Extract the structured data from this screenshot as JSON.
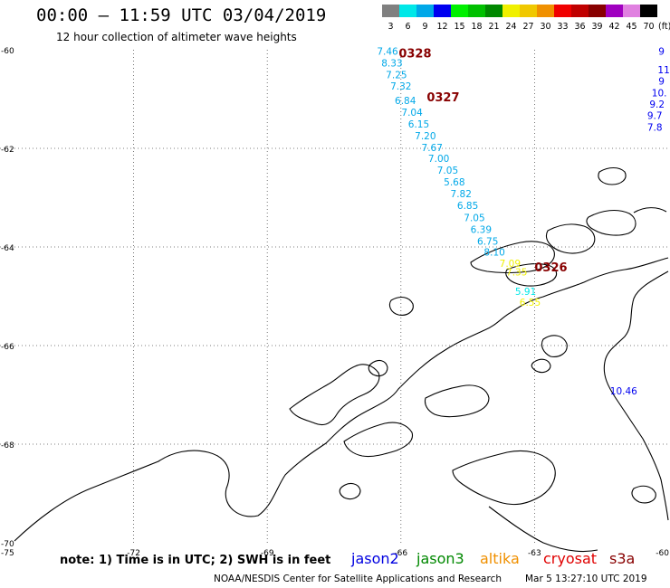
{
  "header": {
    "title": "00:00 – 11:59 UTC 03/04/2019",
    "subtitle": "12 hour collection of altimeter wave heights"
  },
  "legend": {
    "unit": "(ft)",
    "bins": [
      {
        "label": "3",
        "color": "#808080"
      },
      {
        "label": "6",
        "color": "#00e8e8"
      },
      {
        "label": "9",
        "color": "#00a8e8"
      },
      {
        "label": "12",
        "color": "#0000f0"
      },
      {
        "label": "15",
        "color": "#00f000"
      },
      {
        "label": "18",
        "color": "#00c000"
      },
      {
        "label": "21",
        "color": "#008800"
      },
      {
        "label": "24",
        "color": "#f0f000"
      },
      {
        "label": "27",
        "color": "#f0c800"
      },
      {
        "label": "30",
        "color": "#f09000"
      },
      {
        "label": "33",
        "color": "#f00000"
      },
      {
        "label": "36",
        "color": "#c00000"
      },
      {
        "label": "39",
        "color": "#880000"
      },
      {
        "label": "42",
        "color": "#a000c0"
      },
      {
        "label": "45",
        "color": "#e080e0"
      },
      {
        "label": "70",
        "color": "#000000"
      }
    ]
  },
  "axes": {
    "lat_labels": [
      {
        "value": "-60",
        "lat": -60
      },
      {
        "value": "-62",
        "lat": -62
      },
      {
        "value": "-64",
        "lat": -64
      },
      {
        "value": "-66",
        "lat": -66
      },
      {
        "value": "-68",
        "lat": -68
      },
      {
        "value": "-70",
        "lat": -70
      }
    ],
    "lon_labels": [
      {
        "value": "-75",
        "lon": -75
      },
      {
        "value": "-72",
        "lon": -72
      },
      {
        "value": "-69",
        "lon": -69
      },
      {
        "value": "-66",
        "lon": -66
      },
      {
        "value": "-63",
        "lon": -63
      },
      {
        "value": "-60",
        "lon": -60
      }
    ]
  },
  "chart_data": {
    "type": "scatter",
    "title": "00:00 – 11:59 UTC 03/04/2019",
    "subtitle": "12 hour collection of altimeter wave heights",
    "xlim": [
      -75,
      -60
    ],
    "ylim": [
      -70,
      -60
    ],
    "grid": true,
    "series": [
      {
        "name": "track 0328",
        "color": "#00a8e8",
        "points": [
          {
            "lon": -66.3,
            "lat": -60.03,
            "label": "7.46"
          },
          {
            "lon": -66.2,
            "lat": -60.27,
            "label": "8.33"
          },
          {
            "lon": -66.1,
            "lat": -60.5,
            "label": "7.25"
          },
          {
            "lon": -66.0,
            "lat": -60.73,
            "label": "7.32"
          },
          {
            "lon": -65.9,
            "lat": -61.03,
            "label": "6.84"
          },
          {
            "lon": -65.75,
            "lat": -61.27,
            "label": "7.04"
          },
          {
            "lon": -65.6,
            "lat": -61.5,
            "label": "6.15"
          },
          {
            "lon": -65.45,
            "lat": -61.74,
            "label": "7.20"
          },
          {
            "lon": -65.3,
            "lat": -61.98,
            "label": "7.67"
          },
          {
            "lon": -65.15,
            "lat": -62.2,
            "label": "7.00"
          },
          {
            "lon": -64.95,
            "lat": -62.44,
            "label": "7.05"
          },
          {
            "lon": -64.8,
            "lat": -62.68,
            "label": "5.68"
          },
          {
            "lon": -64.65,
            "lat": -62.92,
            "label": "7.82"
          },
          {
            "lon": -64.5,
            "lat": -63.16,
            "label": "6.85"
          },
          {
            "lon": -64.35,
            "lat": -63.4,
            "label": "7.05"
          },
          {
            "lon": -64.2,
            "lat": -63.64,
            "label": "6.39"
          },
          {
            "lon": -64.05,
            "lat": -63.88,
            "label": "6.75"
          },
          {
            "lon": -63.9,
            "lat": -64.1,
            "label": "8.10"
          }
        ]
      },
      {
        "name": "track 0326",
        "color": "#f0f000",
        "points": [
          {
            "lon": -63.55,
            "lat": -64.33,
            "label": "7.09"
          },
          {
            "lon": -63.4,
            "lat": -64.5,
            "label": "7.35"
          },
          {
            "lon": -63.1,
            "lat": -65.12,
            "label": "6.55"
          }
        ]
      },
      {
        "name": "track 0326b",
        "color": "#00e8e8",
        "points": [
          {
            "lon": -63.2,
            "lat": -64.9,
            "label": "5.91"
          }
        ]
      },
      {
        "name": "track right",
        "color": "#0000f0",
        "points": [
          {
            "lon": -60.15,
            "lat": -60.03,
            "label": "9"
          },
          {
            "lon": -60.1,
            "lat": -60.4,
            "label": "11"
          },
          {
            "lon": -60.15,
            "lat": -60.63,
            "label": "9"
          },
          {
            "lon": -60.2,
            "lat": -60.87,
            "label": "10."
          },
          {
            "lon": -60.25,
            "lat": -61.1,
            "label": "9.2"
          },
          {
            "lon": -60.3,
            "lat": -61.33,
            "label": "9.7"
          },
          {
            "lon": -60.3,
            "lat": -61.57,
            "label": "7.8"
          },
          {
            "lon": -61.0,
            "lat": -66.92,
            "label": "10.46"
          }
        ]
      }
    ],
    "annotations": [
      {
        "text": "0328",
        "lon": -66.05,
        "lat": -60.06,
        "color": "#880000"
      },
      {
        "text": "0327",
        "lon": -65.42,
        "lat": -60.95,
        "color": "#880000"
      },
      {
        "text": "0326",
        "lon": -63.0,
        "lat": -64.4,
        "color": "#880000"
      }
    ]
  },
  "footer": {
    "note": "note: 1) Time is in UTC; 2) SWH is in feet",
    "satellites": [
      {
        "name": "jason2",
        "color": "#0000e0"
      },
      {
        "name": "jason3",
        "color": "#008800"
      },
      {
        "name": "altika",
        "color": "#f09000"
      },
      {
        "name": "cryosat",
        "color": "#e00000"
      },
      {
        "name": "s3a",
        "color": "#880000"
      }
    ],
    "credit": "NOAA/NESDIS Center for Satellite Applications and Research",
    "timestamp": "Mar  5 13:27:10 UTC 2019"
  }
}
